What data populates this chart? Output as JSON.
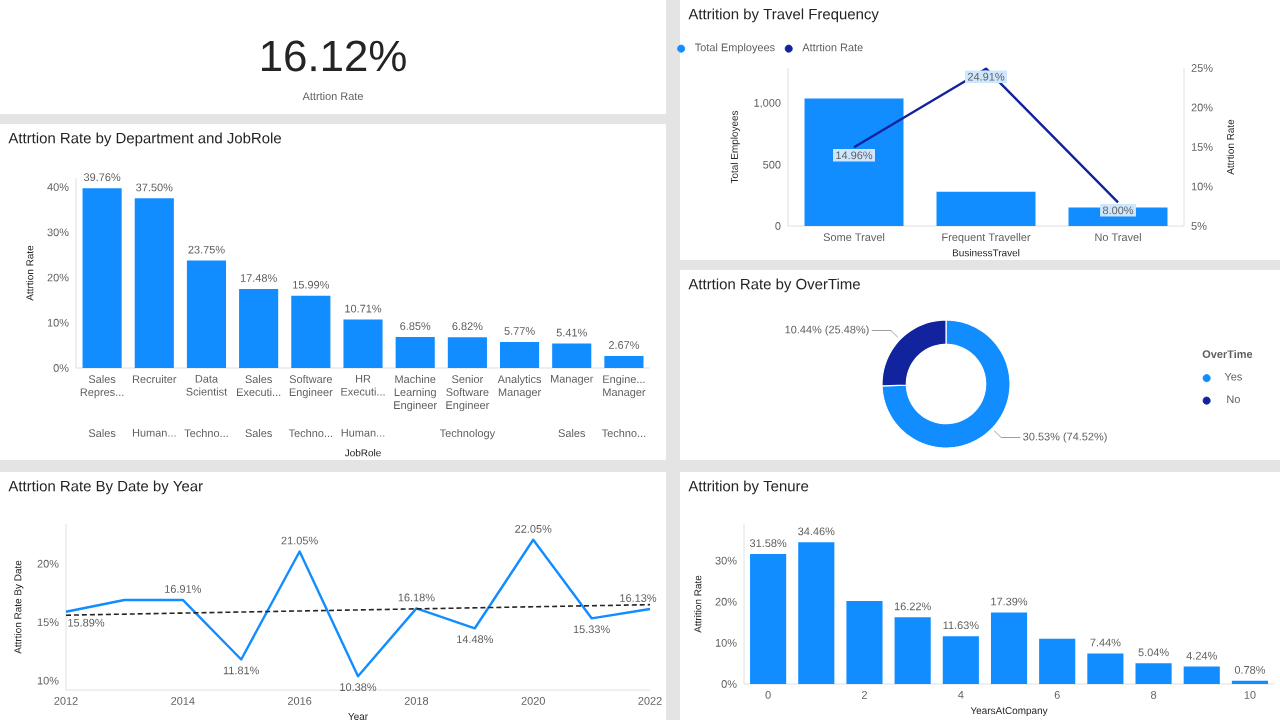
{
  "chart_data": [
    {
      "type": "other",
      "title": "Attrtion Rate",
      "annotations": [
        "16.12%"
      ]
    },
    {
      "type": "bar",
      "title": "Attrition by Travel Frequency",
      "xlabel": "BusinessTravel",
      "ylabel": "Total Employees",
      "y2label": "Attrtion Rate",
      "categories": [
        "Some Travel",
        "Frequent Traveller",
        "No Travel"
      ],
      "series": [
        {
          "name": "Total Employees",
          "type": "bar",
          "color": "#118DFF",
          "values": [
            1040,
            280,
            150
          ]
        },
        {
          "name": "Attrtion Rate",
          "type": "line",
          "axis": "y2",
          "color": "#12239E",
          "values": [
            14.96,
            24.91,
            8.0
          ],
          "value_labels": [
            "14.96%",
            "24.91%",
            "8.00%"
          ]
        }
      ],
      "ylim": [
        0,
        1290
      ],
      "yticks": [
        0,
        500,
        {
          "value": 1000,
          "label": "1,000"
        }
      ],
      "y2lim": [
        5,
        25
      ],
      "y2ticks": [
        {
          "value": 5,
          "label": "5%"
        },
        {
          "value": 10,
          "label": "10%"
        },
        {
          "value": 15,
          "label": "15%"
        },
        {
          "value": 20,
          "label": "20%"
        },
        {
          "value": 25,
          "label": "25%"
        }
      ],
      "legend": "top left"
    },
    {
      "type": "bar",
      "title": "Attrtion Rate by Department and JobRole",
      "xlabel": "JobRole",
      "ylabel": "Attrtion Rate",
      "categories": [
        "Sales Repres...",
        "Recruiter",
        "Data Scientist",
        "Sales Executi...",
        "Software Engineer",
        "HR Executi...",
        "Machine Learning Engineer",
        "Senior Software Engineer",
        "Analytics Manager",
        "Manager",
        "Engine... Manager"
      ],
      "values": [
        39.76,
        37.5,
        23.75,
        17.48,
        15.99,
        10.71,
        6.85,
        6.82,
        5.77,
        5.41,
        2.67
      ],
      "value_labels": [
        "39.76%",
        "37.50%",
        "23.75%",
        "17.48%",
        "15.99%",
        "10.71%",
        "6.85%",
        "6.82%",
        "5.77%",
        "5.41%",
        "2.67%"
      ],
      "color": "#118DFF",
      "ylim": [
        0,
        42
      ],
      "yticks": [
        {
          "value": 0,
          "label": "0%"
        },
        {
          "value": 10,
          "label": "10%"
        },
        {
          "value": 20,
          "label": "20%"
        },
        {
          "value": 30,
          "label": "30%"
        },
        {
          "value": 40,
          "label": "40%"
        }
      ],
      "annotations": [
        "Sales",
        "Human...",
        "Techno...",
        "Sales",
        "Techno...",
        "Human...",
        "Technology",
        "Sales",
        "Techno..."
      ]
    },
    {
      "type": "donut",
      "title": "Attrtion Rate by OverTime",
      "legend_title": "OverTime",
      "legend": "right",
      "categories": [
        "Yes",
        "No"
      ],
      "values": [
        30.53,
        10.44
      ],
      "colors": [
        "#118DFF",
        "#12239E"
      ],
      "value_labels": [
        "30.53% (74.52%)",
        "10.44% (25.48%)"
      ]
    },
    {
      "type": "line",
      "title": "Attrtion Rate By Date by Year",
      "xlabel": "Year",
      "ylabel": "Attrtion Rate By Date",
      "x": [
        2012,
        2013,
        2014,
        2015,
        2016,
        2017,
        2018,
        2019,
        2020,
        2021,
        2022
      ],
      "series": [
        {
          "color": "#118DFF",
          "values": [
            15.89,
            16.9,
            16.91,
            11.81,
            21.05,
            10.38,
            16.18,
            14.48,
            22.05,
            15.33,
            16.13
          ],
          "value_labels": [
            "15.89%",
            null,
            "16.91%",
            "11.81%",
            "21.05%",
            "10.38%",
            "16.18%",
            "14.48%",
            "22.05%",
            "15.33%",
            "16.13%"
          ]
        },
        {
          "type": "line",
          "x": [
            2012,
            2022
          ],
          "values": [
            15.6,
            16.5
          ],
          "color": "#252423",
          "line_style": "dashed"
        }
      ],
      "marker": "none",
      "xlim": [
        2012,
        2022
      ],
      "xticks": [
        2012,
        2014,
        2016,
        2018,
        2020,
        2022
      ],
      "ylim": [
        9.2,
        23.4
      ],
      "yticks": [
        {
          "value": 10,
          "label": "10%"
        },
        {
          "value": 15,
          "label": "15%"
        },
        {
          "value": 20,
          "label": "20%"
        }
      ]
    },
    {
      "type": "bar",
      "title": "Attrition by Tenure",
      "xlabel": "YearsAtCompany",
      "ylabel": "Attrition Rate",
      "x": [
        0,
        1,
        2,
        3,
        4,
        5,
        6,
        7,
        8,
        9,
        10
      ],
      "values": [
        31.58,
        34.46,
        20.2,
        16.22,
        11.63,
        17.39,
        11.0,
        7.44,
        5.04,
        4.24,
        0.78
      ],
      "value_labels": [
        "31.58%",
        "34.46%",
        null,
        "16.22%",
        "11.63%",
        "17.39%",
        null,
        "7.44%",
        "5.04%",
        "4.24%",
        "0.78%"
      ],
      "color": "#118DFF",
      "xlim": [
        -0.5,
        10.5
      ],
      "xticks": [
        0,
        2,
        4,
        6,
        8,
        10
      ],
      "ylim": [
        0,
        38.9
      ],
      "yticks": [
        {
          "value": 0,
          "label": "0%"
        },
        {
          "value": 10,
          "label": "10%"
        },
        {
          "value": 20,
          "label": "20%"
        },
        {
          "value": 30,
          "label": "30%"
        }
      ]
    }
  ]
}
